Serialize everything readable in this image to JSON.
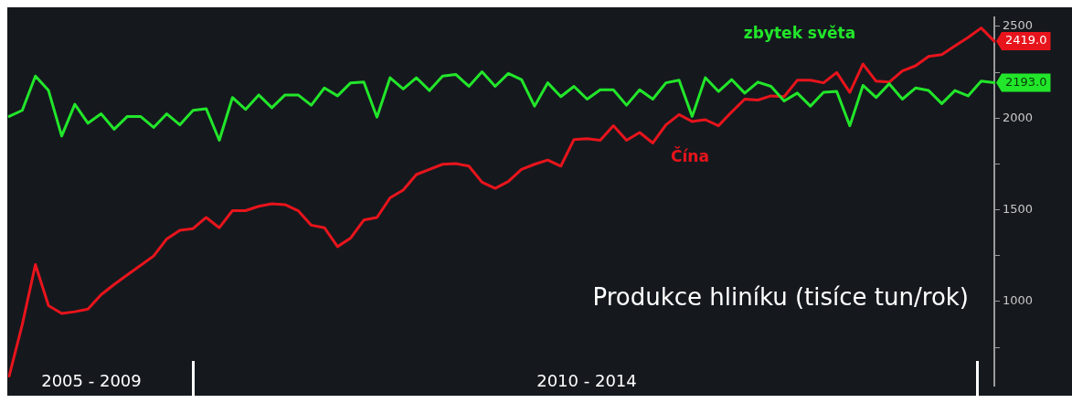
{
  "chart_data": {
    "type": "line",
    "title": "Produkce hliníku (tisíce tun/rok)",
    "tick_labels": "y",
    "annotations": [
      "2005 - 2009",
      "2010 - 2014"
    ],
    "categories": [
      null,
      null,
      null,
      null,
      null,
      null,
      null,
      null,
      null,
      null,
      null,
      null,
      null,
      null,
      null,
      null,
      null,
      null,
      null,
      null,
      null,
      null,
      null,
      null,
      null,
      null,
      null,
      null,
      null,
      null,
      null,
      null,
      null,
      null,
      null,
      null,
      null,
      null,
      null,
      null,
      null,
      null,
      null,
      null,
      null,
      null,
      null,
      null,
      null,
      null,
      null,
      null,
      null,
      null,
      null,
      null,
      null,
      null,
      null,
      null,
      null,
      null,
      null,
      null,
      null,
      null,
      null,
      null,
      null,
      null,
      null,
      null,
      null,
      null,
      null,
      null
    ],
    "ylim": [
      540,
      2550
    ],
    "yticks": [
      {
        "value": 750,
        "label": null
      },
      1000,
      {
        "value": 1250,
        "label": null
      },
      1500,
      {
        "value": 1750,
        "label": null
      },
      2000,
      {
        "value": 2250,
        "label": null
      },
      2500
    ],
    "series": [
      {
        "name": "zbytek světa",
        "color": "#22e62a",
        "values": [
          2009,
          2042,
          2229,
          2150,
          1902,
          2075,
          1972,
          2023,
          1939,
          2009,
          2009,
          1949,
          2023,
          1963,
          2042,
          2051,
          1879,
          2112,
          2047,
          2126,
          2056,
          2126,
          2126,
          2070,
          2164,
          2121,
          2192,
          2196,
          2005,
          2220,
          2159,
          2220,
          2150,
          2229,
          2238,
          2173,
          2252,
          2173,
          2243,
          2210,
          2065,
          2192,
          2117,
          2173,
          2103,
          2154,
          2154,
          2070,
          2154,
          2103,
          2192,
          2206,
          2009,
          2220,
          2145,
          2210,
          2136,
          2196,
          2173,
          2093,
          2136,
          2065,
          2140,
          2145,
          1958,
          2178,
          2112,
          2187,
          2103,
          2164,
          2150,
          2079,
          2150,
          2121,
          2201,
          2193
        ],
        "value_labels": [
          null,
          null,
          null,
          null,
          null,
          null,
          null,
          null,
          null,
          null,
          null,
          null,
          null,
          null,
          null,
          null,
          null,
          null,
          null,
          null,
          null,
          null,
          null,
          null,
          null,
          null,
          null,
          null,
          null,
          null,
          null,
          null,
          null,
          null,
          null,
          null,
          null,
          null,
          null,
          null,
          null,
          null,
          null,
          null,
          null,
          null,
          null,
          null,
          null,
          null,
          null,
          null,
          null,
          null,
          null,
          null,
          null,
          null,
          null,
          null,
          null,
          null,
          null,
          null,
          null,
          null,
          null,
          null,
          null,
          null,
          null,
          null,
          null,
          null,
          null,
          "2193.0"
        ]
      },
      {
        "name": "Čína",
        "color": "#e8141c",
        "values": [
          593,
          874,
          1201,
          977,
          935,
          944,
          958,
          1037,
          1093,
          1145,
          1196,
          1248,
          1341,
          1388,
          1397,
          1458,
          1402,
          1495,
          1495,
          1519,
          1533,
          1528,
          1495,
          1416,
          1402,
          1299,
          1346,
          1444,
          1458,
          1565,
          1607,
          1692,
          1720,
          1748,
          1752,
          1738,
          1650,
          1617,
          1654,
          1720,
          1748,
          1771,
          1738,
          1883,
          1888,
          1879,
          1958,
          1879,
          1921,
          1864,
          1963,
          2019,
          1981,
          1991,
          1958,
          2033,
          2103,
          2098,
          2121,
          2117,
          2206,
          2206,
          2192,
          2248,
          2140,
          2294,
          2201,
          2196,
          2257,
          2285,
          2336,
          2346,
          2393,
          2439,
          2491,
          2419
        ],
        "value_labels": [
          null,
          null,
          null,
          null,
          null,
          null,
          null,
          null,
          null,
          null,
          null,
          null,
          null,
          null,
          null,
          null,
          null,
          null,
          null,
          null,
          null,
          null,
          null,
          null,
          null,
          null,
          null,
          null,
          null,
          null,
          null,
          null,
          null,
          null,
          null,
          null,
          null,
          null,
          null,
          null,
          null,
          null,
          null,
          null,
          null,
          null,
          null,
          null,
          null,
          null,
          null,
          null,
          null,
          null,
          null,
          null,
          null,
          null,
          null,
          null,
          null,
          null,
          null,
          null,
          null,
          null,
          null,
          null,
          null,
          null,
          null,
          null,
          null,
          null,
          null,
          "2419.0"
        ]
      }
    ]
  }
}
